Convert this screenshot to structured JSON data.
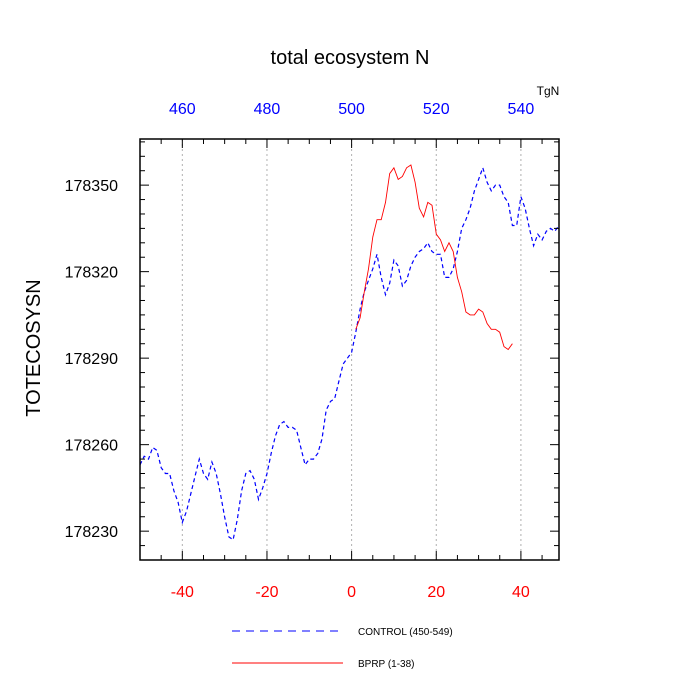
{
  "chart_data": {
    "type": "line",
    "title": "total ecosystem N",
    "ylabel": "TOTECOSYSN",
    "top_axis_unit": "TgN",
    "xlim": [
      -50,
      49
    ],
    "ylim": [
      178220,
      178366
    ],
    "grid": "vertical dotted lines at bottom x ticks",
    "legend_placement": "bottom",
    "colors": {
      "bottom_axis": "#ff0000",
      "top_axis": "#0000ff",
      "control": "#0000ff",
      "bprp": "#ff0000"
    },
    "bottom_ticks": [
      "-40",
      "-20",
      "0",
      "20",
      "40"
    ],
    "bottom_tick_values": [
      -40,
      -20,
      0,
      20,
      40
    ],
    "top_ticks": [
      "460",
      "480",
      "500",
      "520",
      "540"
    ],
    "top_tick_values": [
      -40,
      -20,
      0,
      20,
      40
    ],
    "left_ticks": [
      "178230",
      "178260",
      "178290",
      "178320",
      "178350"
    ],
    "left_tick_values": [
      178230,
      178260,
      178290,
      178320,
      178350
    ],
    "series": [
      {
        "name": "CONTROL (450-549)",
        "style": "dashed",
        "color": "#0000ff",
        "x": [
          -50,
          -49,
          -48,
          -47,
          -46,
          -45,
          -44,
          -43,
          -42,
          -41,
          -40,
          -39,
          -38,
          -37,
          -36,
          -35,
          -34,
          -33,
          -32,
          -31,
          -30,
          -29,
          -28,
          -27,
          -26,
          -25,
          -24,
          -23,
          -22,
          -21,
          -20,
          -19,
          -18,
          -17,
          -16,
          -15,
          -14,
          -13,
          -12,
          -11,
          -10,
          -9,
          -8,
          -7,
          -6,
          -5,
          -4,
          -3,
          -2,
          -1,
          0,
          1,
          2,
          3,
          4,
          5,
          6,
          7,
          8,
          9,
          10,
          11,
          12,
          13,
          14,
          15,
          16,
          17,
          18,
          19,
          20,
          21,
          22,
          23,
          24,
          25,
          26,
          27,
          28,
          29,
          30,
          31,
          32,
          33,
          34,
          35,
          36,
          37,
          38,
          39,
          40,
          41,
          42,
          43,
          44,
          45,
          46,
          47,
          48,
          49
        ],
        "values": [
          178253,
          178256,
          178255,
          178259,
          178258,
          178252,
          178250,
          178250,
          178244,
          178240,
          178233,
          178237,
          178243,
          178249,
          178255,
          178250,
          178248,
          178254,
          178250,
          178243,
          178235,
          178228,
          178227,
          178234,
          178244,
          178250,
          178251,
          178248,
          178241,
          178245,
          178250,
          178257,
          178263,
          178267,
          178268,
          178266,
          178266,
          178265,
          178259,
          178253,
          178255,
          178255,
          178257,
          178262,
          178272,
          178275,
          178276,
          178282,
          178288,
          178290,
          178292,
          178299,
          178307,
          178313,
          178317,
          178321,
          178326,
          178318,
          178312,
          178316,
          178324,
          178322,
          178315,
          178317,
          178322,
          178325,
          178327,
          178328,
          178330,
          178327,
          178326,
          178326,
          178318,
          178318,
          178321,
          178327,
          178335,
          178338,
          178342,
          178348,
          178352,
          178356,
          178351,
          178348,
          178350,
          178350,
          178346,
          178344,
          178336,
          178336,
          178346,
          178342,
          178335,
          178329,
          178333,
          178331,
          178334,
          178335,
          178334,
          178336
        ]
      },
      {
        "name": "BPRP (1-38)",
        "style": "solid",
        "color": "#ff0000",
        "x": [
          1,
          2,
          3,
          4,
          5,
          6,
          7,
          8,
          9,
          10,
          11,
          12,
          13,
          14,
          15,
          16,
          17,
          18,
          19,
          20,
          21,
          22,
          23,
          24,
          25,
          26,
          27,
          28,
          29,
          30,
          31,
          32,
          33,
          34,
          35,
          36,
          37,
          38
        ],
        "values": [
          178300,
          178304,
          178313,
          178321,
          178332,
          178338,
          178338,
          178344,
          178354,
          178356,
          178352,
          178353,
          178356,
          178357,
          178351,
          178342,
          178339,
          178344,
          178343,
          178333,
          178331,
          178327,
          178330,
          178327,
          178318,
          178313,
          178306,
          178305,
          178305,
          178307,
          178306,
          178302,
          178300,
          178300,
          178299,
          178294,
          178293,
          178295
        ]
      }
    ]
  }
}
